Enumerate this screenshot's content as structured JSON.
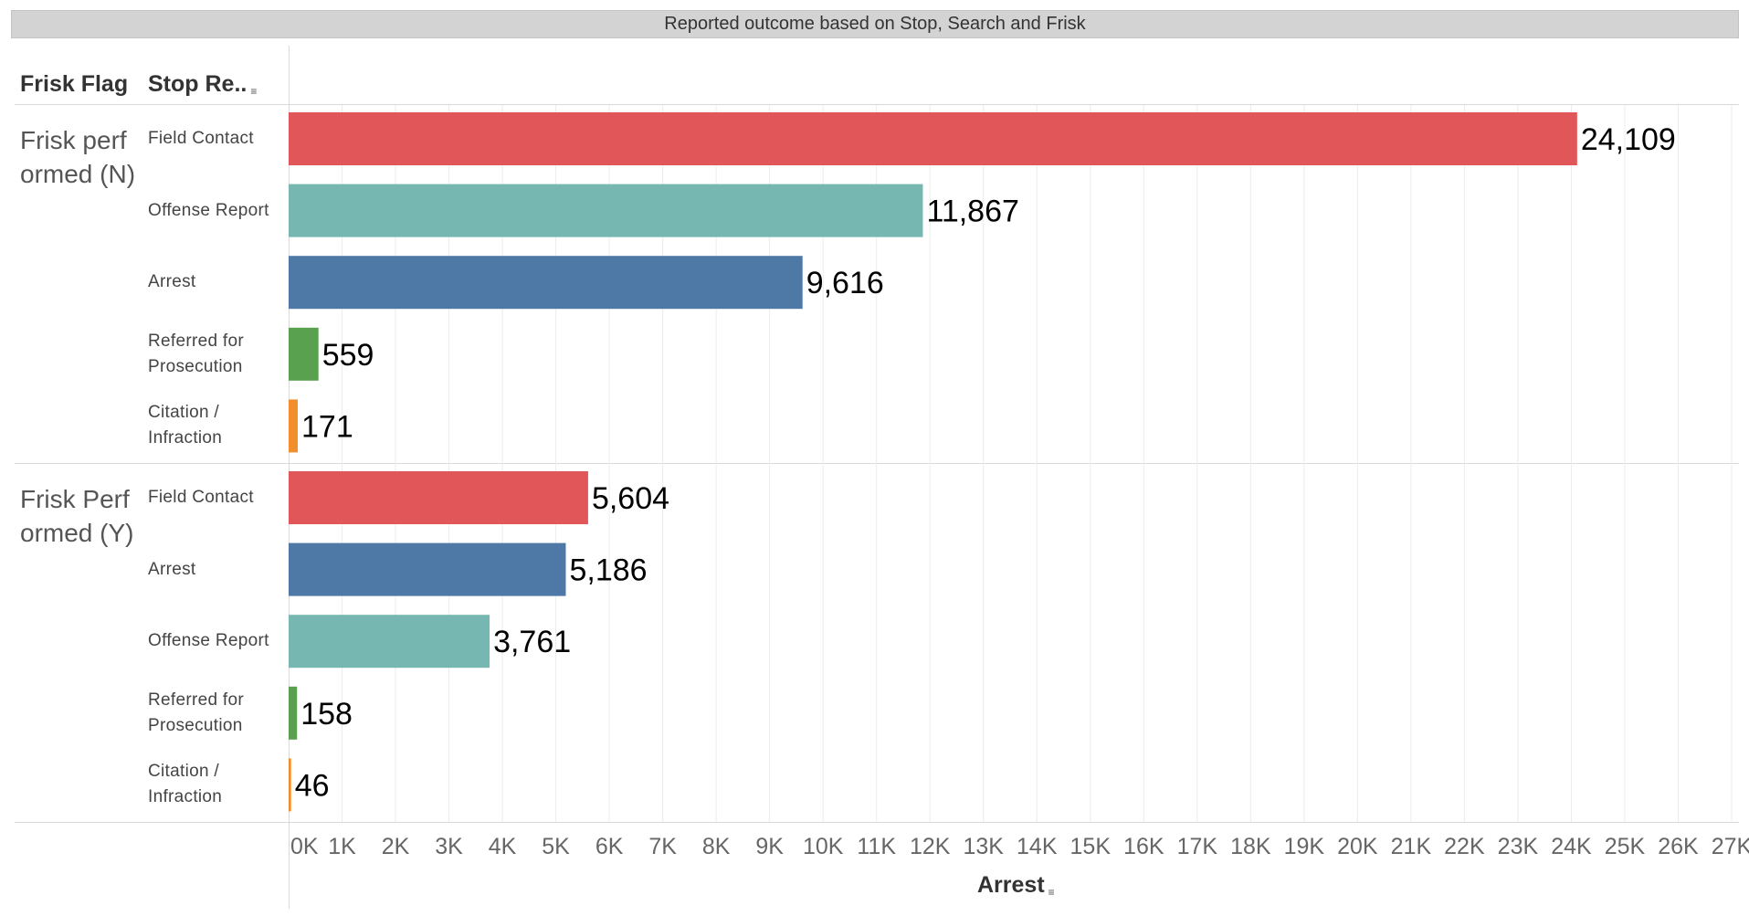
{
  "title": "Reported outcome based on Stop, Search and Frisk",
  "headers": {
    "frisk_flag": "Frisk Flag",
    "stop_result": "Stop Re.."
  },
  "colors": {
    "Field Contact": "#e15759",
    "Offense Report": "#76b7b2",
    "Arrest": "#4e79a7",
    "Referred for Prosecution": "#59a14f",
    "Citation / Infraction": "#f28e2b"
  },
  "chart_data": {
    "type": "bar",
    "orientation": "horizontal",
    "title": "Reported outcome based on Stop, Search and Frisk",
    "xlabel": "Arrest",
    "xlim": [
      0,
      27000
    ],
    "x_ticks": [
      "0K",
      "1K",
      "2K",
      "3K",
      "4K",
      "5K",
      "6K",
      "7K",
      "8K",
      "9K",
      "10K",
      "11K",
      "12K",
      "13K",
      "14K",
      "15K",
      "16K",
      "17K",
      "18K",
      "19K",
      "20K",
      "21K",
      "22K",
      "23K",
      "24K",
      "25K",
      "26K",
      "27K"
    ],
    "grid": "vertical",
    "groups": [
      {
        "name": "Frisk performed (N)",
        "bars": [
          {
            "category": "Field Contact",
            "label_lines": [
              "Field Contact"
            ],
            "value": 24109,
            "value_label": "24,109"
          },
          {
            "category": "Offense Report",
            "label_lines": [
              "Offense Report"
            ],
            "value": 11867,
            "value_label": "11,867"
          },
          {
            "category": "Arrest",
            "label_lines": [
              "Arrest"
            ],
            "value": 9616,
            "value_label": "9,616"
          },
          {
            "category": "Referred for Prosecution",
            "label_lines": [
              "Referred for",
              "Prosecution"
            ],
            "value": 559,
            "value_label": "559"
          },
          {
            "category": "Citation / Infraction",
            "label_lines": [
              "Citation /",
              "Infraction"
            ],
            "value": 171,
            "value_label": "171"
          }
        ]
      },
      {
        "name": "Frisk Performed (Y)",
        "bars": [
          {
            "category": "Field Contact",
            "label_lines": [
              "Field Contact"
            ],
            "value": 5604,
            "value_label": "5,604"
          },
          {
            "category": "Arrest",
            "label_lines": [
              "Arrest"
            ],
            "value": 5186,
            "value_label": "5,186"
          },
          {
            "category": "Offense Report",
            "label_lines": [
              "Offense Report"
            ],
            "value": 3761,
            "value_label": "3,761"
          },
          {
            "category": "Referred for Prosecution",
            "label_lines": [
              "Referred for",
              "Prosecution"
            ],
            "value": 158,
            "value_label": "158"
          },
          {
            "category": "Citation / Infraction",
            "label_lines": [
              "Citation /",
              "Infraction"
            ],
            "value": 46,
            "value_label": "46"
          }
        ]
      }
    ]
  }
}
